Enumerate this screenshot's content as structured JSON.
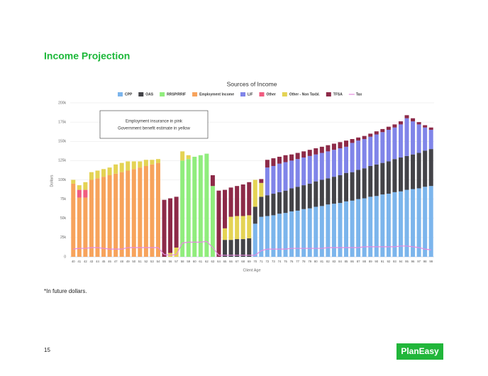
{
  "header": {
    "title": "Income Projection"
  },
  "chart_data": {
    "type": "bar",
    "stacked": true,
    "title": "Sources of Income",
    "x_label": "Client Age",
    "y_label": "Dollars",
    "annotation": [
      "Employment insurance in pink",
      "Government benefit estimate in yellow"
    ],
    "categories": [
      "40",
      "41",
      "42",
      "43",
      "44",
      "45",
      "46",
      "47",
      "48",
      "49",
      "50",
      "51",
      "52",
      "53",
      "54",
      "55",
      "56",
      "57",
      "58",
      "59",
      "60",
      "61",
      "62",
      "63",
      "64",
      "65",
      "66",
      "67",
      "68",
      "69",
      "70",
      "71",
      "72",
      "73",
      "74",
      "75",
      "76",
      "77",
      "78",
      "79",
      "80",
      "81",
      "82",
      "83",
      "84",
      "85",
      "86",
      "87",
      "88",
      "89",
      "90",
      "91",
      "92",
      "93",
      "94",
      "95",
      "96",
      "97",
      "98",
      "99"
    ],
    "ylim": [
      0,
      200000
    ],
    "yticks": [
      0,
      {
        "value": 25000,
        "label": "25k"
      },
      {
        "value": 50000,
        "label": "50k"
      },
      {
        "value": 75000,
        "label": "75k"
      },
      {
        "value": 100000,
        "label": "100k"
      },
      {
        "value": 125000,
        "label": "125k"
      },
      {
        "value": 150000,
        "label": "150k"
      },
      {
        "value": 175000,
        "label": "175k"
      },
      {
        "value": 200000,
        "label": "200k"
      }
    ],
    "grid": true,
    "legend": "top",
    "series": [
      {
        "name": "CPP",
        "color": "#7cb5ec",
        "values": [
          null,
          null,
          null,
          null,
          null,
          null,
          null,
          null,
          null,
          null,
          null,
          null,
          null,
          null,
          null,
          null,
          null,
          null,
          null,
          null,
          null,
          null,
          null,
          null,
          null,
          null,
          null,
          null,
          null,
          null,
          43000,
          52000,
          53000,
          54000,
          56000,
          57000,
          59000,
          60000,
          62000,
          63000,
          65000,
          66000,
          68000,
          69000,
          70000,
          72000,
          73000,
          75000,
          76000,
          78000,
          79000,
          81000,
          82000,
          84000,
          85000,
          87000,
          88000,
          89000,
          91000,
          92000
        ]
      },
      {
        "name": "OAS",
        "color": "#434348",
        "values": [
          null,
          null,
          null,
          null,
          null,
          null,
          null,
          null,
          null,
          null,
          null,
          null,
          null,
          null,
          null,
          null,
          null,
          null,
          null,
          null,
          null,
          null,
          null,
          null,
          null,
          22000,
          22000,
          23000,
          23000,
          24000,
          22000,
          26000,
          27000,
          28000,
          28000,
          29000,
          30000,
          31000,
          31000,
          32000,
          33000,
          34000,
          34000,
          35000,
          36000,
          37000,
          37000,
          38000,
          39000,
          40000,
          41000,
          41000,
          42000,
          43000,
          44000,
          44000,
          45000,
          46000,
          47000,
          48000
        ]
      },
      {
        "name": "RRSP/RRIF",
        "color": "#90ed7d",
        "values": [
          null,
          null,
          null,
          null,
          null,
          null,
          null,
          null,
          null,
          null,
          null,
          null,
          null,
          null,
          null,
          null,
          null,
          null,
          125000,
          127000,
          130000,
          132000,
          134000,
          92000,
          null,
          null,
          null,
          null,
          null,
          null,
          null,
          null,
          null,
          null,
          null,
          null,
          null,
          null,
          null,
          null,
          null,
          null,
          null,
          null,
          null,
          null,
          null,
          null,
          null,
          null,
          null,
          null,
          null,
          null,
          null,
          null,
          null,
          null,
          null,
          null
        ]
      },
      {
        "name": "Employment Income",
        "color": "#f7a35c",
        "values": [
          95000,
          77000,
          77000,
          100000,
          102000,
          104000,
          106000,
          108000,
          110000,
          112000,
          114000,
          116000,
          118000,
          120000,
          122000,
          null,
          null,
          null,
          null,
          null,
          null,
          null,
          null,
          null,
          null,
          null,
          null,
          null,
          null,
          null,
          null,
          null,
          null,
          null,
          null,
          null,
          null,
          null,
          null,
          null,
          null,
          null,
          null,
          null,
          null,
          null,
          null,
          null,
          null,
          null,
          null,
          null,
          null,
          null,
          null,
          null,
          null,
          null,
          null,
          null
        ]
      },
      {
        "name": "LIF",
        "color": "#8085e9",
        "values": [
          null,
          null,
          null,
          null,
          null,
          null,
          null,
          null,
          null,
          null,
          null,
          null,
          null,
          null,
          null,
          null,
          null,
          null,
          null,
          null,
          null,
          null,
          null,
          null,
          null,
          null,
          null,
          null,
          null,
          null,
          null,
          null,
          36000,
          36000,
          37000,
          37000,
          36000,
          36000,
          36000,
          36000,
          35000,
          35000,
          35000,
          35000,
          35000,
          34000,
          38000,
          38000,
          38000,
          38000,
          39000,
          40000,
          41000,
          41000,
          43000,
          49000,
          43000,
          37000,
          30000,
          25000
        ]
      },
      {
        "name": "Other",
        "color": "#f15c80",
        "values": [
          null,
          10000,
          10000,
          null,
          null,
          null,
          null,
          null,
          null,
          null,
          null,
          null,
          null,
          null,
          null,
          null,
          null,
          null,
          null,
          null,
          null,
          null,
          null,
          null,
          null,
          null,
          null,
          null,
          null,
          null,
          null,
          null,
          null,
          null,
          null,
          null,
          null,
          null,
          null,
          null,
          null,
          null,
          null,
          null,
          null,
          null,
          null,
          null,
          null,
          null,
          null,
          null,
          null,
          null,
          null,
          null,
          null,
          null,
          null,
          null
        ]
      },
      {
        "name": "Other - Non Taxbl.",
        "color": "#e4d354",
        "values": [
          5000,
          6000,
          10000,
          10000,
          10000,
          10000,
          10000,
          12000,
          12000,
          12000,
          10000,
          8000,
          8000,
          6000,
          5000,
          null,
          5000,
          12000,
          12000,
          5000,
          null,
          null,
          null,
          null,
          null,
          15000,
          30000,
          30000,
          30000,
          30000,
          35000,
          18000,
          null,
          null,
          null,
          null,
          null,
          null,
          null,
          null,
          null,
          null,
          null,
          null,
          null,
          null,
          null,
          null,
          null,
          null,
          null,
          null,
          null,
          null,
          null,
          null,
          null,
          null,
          null,
          null
        ]
      },
      {
        "name": "TFSA",
        "color": "#8d2a48",
        "values": [
          null,
          null,
          null,
          null,
          null,
          null,
          null,
          null,
          null,
          null,
          null,
          null,
          null,
          null,
          null,
          74000,
          71000,
          66000,
          null,
          null,
          null,
          null,
          null,
          14000,
          86000,
          50000,
          38000,
          39000,
          41000,
          43000,
          null,
          5000,
          10000,
          10000,
          9000,
          9000,
          8000,
          8000,
          8000,
          8000,
          8000,
          8000,
          8000,
          8000,
          8000,
          8000,
          5000,
          4000,
          4000,
          4000,
          4000,
          4000,
          4000,
          4000,
          4000,
          4000,
          4000,
          3000,
          3000,
          3000
        ]
      },
      {
        "name": "Tax",
        "color": "#e58ae0",
        "type": "line",
        "values": [
          10000,
          11000,
          11000,
          12000,
          12000,
          11000,
          10000,
          10000,
          10000,
          12000,
          12000,
          12000,
          12000,
          12000,
          12000,
          3000,
          2000,
          3000,
          18000,
          19000,
          19000,
          19000,
          20000,
          12000,
          2000,
          2000,
          2000,
          2000,
          2000,
          2000,
          2000,
          8000,
          10000,
          10000,
          10000,
          10000,
          11000,
          11000,
          11000,
          11000,
          11000,
          11000,
          12000,
          12000,
          12000,
          12000,
          12000,
          12000,
          13000,
          13000,
          13000,
          13000,
          13000,
          13000,
          14000,
          14000,
          13000,
          12000,
          10000,
          9000
        ]
      }
    ]
  },
  "footnote": "*In future dollars.",
  "page_number": "15",
  "logo": "PlanEasy"
}
